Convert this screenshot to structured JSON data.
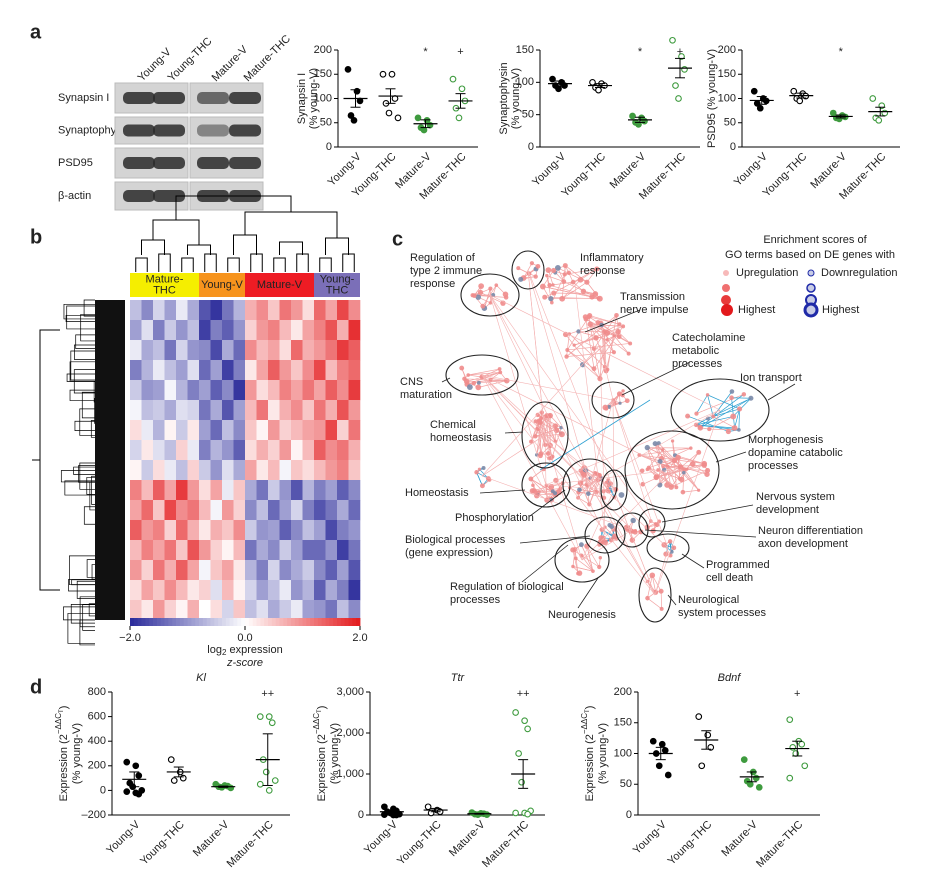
{
  "panels": [
    "a",
    "b",
    "c",
    "d"
  ],
  "blot": {
    "lanes": [
      "Young-V",
      "Young-THC",
      "Mature-V",
      "Mature-THC"
    ],
    "proteins": [
      "Synapsin I",
      "Synaptophysin",
      "PSD95",
      "β-actin"
    ]
  },
  "chart_data": [
    {
      "type": "dot",
      "ylabel": [
        "Synapsin I",
        "(% young-V)"
      ],
      "categories": [
        "Young-V",
        "Young-THC",
        "Mature-V",
        "Mature-THC"
      ],
      "colors": [
        "#000000",
        "#000000",
        "#3f9b3f",
        "#3f9b3f"
      ],
      "filled": [
        true,
        false,
        true,
        false
      ],
      "points": [
        [
          160,
          115,
          95,
          65,
          55
        ],
        [
          150,
          150,
          100,
          90,
          70,
          60
        ],
        [
          60,
          55,
          45,
          40,
          35
        ],
        [
          140,
          120,
          95,
          80,
          60
        ]
      ],
      "means": [
        100,
        105,
        48,
        95
      ],
      "errors": [
        18,
        15,
        8,
        15
      ],
      "annotations": [
        null,
        null,
        "*",
        "+"
      ],
      "ylim": [
        0,
        200
      ],
      "yticks": [
        0,
        50,
        100,
        150,
        200
      ]
    },
    {
      "type": "dot",
      "ylabel": [
        "Synaptophysin",
        "(% young-V)"
      ],
      "categories": [
        "Young-V",
        "Young-THC",
        "Mature-V",
        "Mature-THC"
      ],
      "colors": [
        "#000000",
        "#000000",
        "#3f9b3f",
        "#3f9b3f"
      ],
      "filled": [
        true,
        false,
        true,
        false
      ],
      "points": [
        [
          105,
          100,
          95,
          95,
          90
        ],
        [
          100,
          98,
          95,
          92,
          88
        ],
        [
          48,
          45,
          40,
          38,
          35
        ],
        [
          165,
          140,
          120,
          95,
          75
        ]
      ],
      "means": [
        98,
        95,
        42,
        122
      ],
      "errors": [
        4,
        3,
        4,
        15
      ],
      "annotations": [
        null,
        null,
        "*",
        "+"
      ],
      "ylim": [
        0,
        150
      ],
      "yticks": [
        0,
        50,
        100,
        150
      ]
    },
    {
      "type": "dot",
      "ylabel": [
        "PSD95 (% young-V)"
      ],
      "categories": [
        "Young-V",
        "Young-THC",
        "Mature-V",
        "Mature-THC"
      ],
      "colors": [
        "#000000",
        "#000000",
        "#3f9b3f",
        "#3f9b3f"
      ],
      "filled": [
        true,
        false,
        true,
        false
      ],
      "points": [
        [
          115,
          100,
          95,
          90,
          80
        ],
        [
          115,
          110,
          105,
          100,
          95
        ],
        [
          70,
          65,
          62,
          60,
          58
        ],
        [
          100,
          85,
          70,
          60,
          55
        ]
      ],
      "means": [
        96,
        106,
        63,
        73
      ],
      "errors": [
        8,
        5,
        3,
        9
      ],
      "annotations": [
        null,
        null,
        "*",
        null
      ],
      "ylim": [
        0,
        200
      ],
      "yticks": [
        0,
        50,
        100,
        150,
        200
      ]
    },
    {
      "type": "dot",
      "title": "Kl",
      "ylabel_expr": {
        "text": "Expression (2",
        "sup": "−ΔΔC",
        "sub": "T",
        "close": ")"
      },
      "ylabel": [
        "(% young-V)"
      ],
      "categories": [
        "Young-V",
        "Young-THC",
        "Mature-V",
        "Mature-THC"
      ],
      "colors": [
        "#000000",
        "#000000",
        "#3f9b3f",
        "#3f9b3f"
      ],
      "filled": [
        true,
        false,
        true,
        false
      ],
      "points": [
        [
          230,
          200,
          120,
          60,
          30,
          0,
          -10,
          -20,
          -30
        ],
        [
          250,
          150,
          100,
          80
        ],
        [
          50,
          40,
          35,
          30,
          25,
          20
        ],
        [
          600,
          600,
          550,
          250,
          150,
          80,
          50,
          0
        ]
      ],
      "means": [
        90,
        150,
        30,
        250
      ],
      "errors": [
        60,
        40,
        5,
        210
      ],
      "annotations": [
        null,
        null,
        null,
        "++"
      ],
      "ylim": [
        -200,
        800
      ],
      "yticks": [
        {
          "value": -200,
          "label": "–200"
        },
        0,
        200,
        400,
        600,
        800
      ]
    },
    {
      "type": "dot",
      "title": "Ttr",
      "ylabel_expr": {
        "text": "Expression (2",
        "sup": "−ΔΔC",
        "sub": "T",
        "close": ")"
      },
      "ylabel": [
        "(% young-V)"
      ],
      "categories": [
        "Young-V",
        "Young-THC",
        "Mature-V",
        "Mature-THC"
      ],
      "colors": [
        "#000000",
        "#000000",
        "#3f9b3f",
        "#3f9b3f"
      ],
      "filled": [
        true,
        false,
        true,
        false
      ],
      "points": [
        [
          200,
          150,
          100,
          80,
          50,
          20,
          10,
          0,
          0
        ],
        [
          200,
          120,
          80,
          50
        ],
        [
          60,
          40,
          30,
          20,
          10,
          10
        ],
        [
          2500,
          2300,
          2100,
          1500,
          800,
          100,
          50,
          50,
          20
        ]
      ],
      "means": [
        80,
        120,
        30,
        1000
      ],
      "errors": [
        40,
        40,
        10,
        350
      ],
      "annotations": [
        null,
        null,
        null,
        "++"
      ],
      "ylim": [
        0,
        3000
      ],
      "yticks": [
        0,
        {
          "value": 1000,
          "label": "1,000"
        },
        {
          "value": 2000,
          "label": "2,000"
        },
        {
          "value": 3000,
          "label": "3,000"
        }
      ]
    },
    {
      "type": "dot",
      "title": "Bdnf",
      "ylabel_expr": {
        "text": "Expression (2",
        "sup": "−ΔΔC",
        "sub": "T",
        "close": ")"
      },
      "ylabel": [
        "(% young-V)"
      ],
      "categories": [
        "Young-V",
        "Young-THC",
        "Mature-V",
        "Mature-THC"
      ],
      "colors": [
        "#000000",
        "#000000",
        "#3f9b3f",
        "#3f9b3f"
      ],
      "filled": [
        true,
        false,
        true,
        false
      ],
      "points": [
        [
          120,
          115,
          105,
          100,
          80,
          65
        ],
        [
          160,
          130,
          110,
          80
        ],
        [
          90,
          70,
          60,
          55,
          50,
          45
        ],
        [
          155,
          120,
          115,
          110,
          100,
          80,
          60
        ]
      ],
      "means": [
        100,
        122,
        62,
        108
      ],
      "errors": [
        10,
        15,
        8,
        12
      ],
      "annotations": [
        null,
        null,
        null,
        "+"
      ],
      "ylim": [
        0,
        200
      ],
      "yticks": [
        0,
        50,
        100,
        150,
        200
      ]
    }
  ],
  "heatmap": {
    "groups": [
      {
        "name": [
          "Mature-",
          "THC"
        ],
        "color": "#f5ee00"
      },
      {
        "name": [
          "Young-V"
        ],
        "color": "#f7941d"
      },
      {
        "name": [
          "Mature-V"
        ],
        "color": "#ee1c24"
      },
      {
        "name": [
          "Young-",
          "THC"
        ],
        "color": "#7b6fb8"
      }
    ],
    "zlim": [
      -2,
      2
    ],
    "low_color": "#2a2a9a",
    "mid_color": "#ffffff",
    "high_color": "#e3191c",
    "colorbar_ticks": [
      {
        "value": -2,
        "label": "−2.0"
      },
      {
        "value": 0,
        "label": "0.0"
      },
      {
        "value": 2,
        "label": "2.0"
      }
    ],
    "colorbar_label": {
      "text": "log",
      "sub": "2",
      "rest": " expression"
    },
    "colorbar_label2": "z-score",
    "z": [
      [
        [
          -0.6,
          -1.1,
          -0.4,
          -0.9,
          -0.2,
          -0.8
        ],
        [
          -1.6,
          -1.9,
          -1.3,
          -0.7
        ],
        [
          0.7,
          1.0,
          0.5,
          1.2,
          0.9,
          0.3
        ],
        [
          1.3,
          0.8,
          1.6,
          1.0
        ]
      ],
      [
        [
          -0.9,
          -0.3,
          -1.2,
          -0.5,
          -1.0,
          -0.6
        ],
        [
          -1.8,
          -1.2,
          -1.5,
          -1.0
        ],
        [
          0.4,
          0.9,
          1.1,
          0.6,
          0.2,
          0.8
        ],
        [
          1.1,
          1.5,
          0.7,
          1.8
        ]
      ],
      [
        [
          -0.2,
          -0.8,
          -0.6,
          -1.3,
          -0.4,
          -1.0
        ],
        [
          -1.1,
          -1.7,
          -0.8,
          -1.4
        ],
        [
          1.0,
          0.6,
          0.8,
          0.3,
          1.3,
          0.7
        ],
        [
          0.9,
          1.2,
          1.7,
          1.4
        ]
      ],
      [
        [
          -1.2,
          -0.7,
          -0.2,
          -0.6,
          -0.9,
          -0.3
        ],
        [
          -1.4,
          -0.9,
          -1.8,
          -1.2
        ],
        [
          0.2,
          0.8,
          1.4,
          0.9,
          0.5,
          1.0
        ],
        [
          1.6,
          0.6,
          1.1,
          1.3
        ]
      ],
      [
        [
          -0.5,
          -1.0,
          -0.9,
          -0.1,
          -0.7,
          -1.2
        ],
        [
          -0.9,
          -1.5,
          -1.1,
          -1.9
        ],
        [
          0.9,
          0.3,
          0.6,
          1.1,
          0.8,
          1.2
        ],
        [
          0.8,
          1.4,
          1.0,
          1.7
        ]
      ],
      [
        [
          -0.1,
          -0.6,
          -0.5,
          -0.8,
          -0.3,
          -0.4
        ],
        [
          -1.3,
          -0.8,
          -1.6,
          -0.9
        ],
        [
          0.6,
          1.2,
          0.2,
          0.7,
          1.0,
          0.5
        ],
        [
          1.2,
          0.7,
          1.5,
          0.9
        ]
      ],
      [
        [
          0.3,
          -0.2,
          -0.7,
          0.1,
          -0.5,
          0.2
        ],
        [
          -0.9,
          -1.4,
          -0.6,
          -1.1
        ],
        [
          0.5,
          0.1,
          0.9,
          0.4,
          0.6,
          0.8
        ],
        [
          0.9,
          1.6,
          0.4,
          1.2
        ]
      ],
      [
        [
          -0.4,
          0.2,
          -0.3,
          -0.6,
          0.4,
          -0.2
        ],
        [
          -1.2,
          -0.7,
          -1.0,
          -1.5
        ],
        [
          0.3,
          0.7,
          0.4,
          0.9,
          0.1,
          0.6
        ],
        [
          1.4,
          1.0,
          1.2,
          0.7
        ]
      ],
      [
        [
          0.1,
          -0.5,
          0.3,
          -0.2,
          -0.6,
          0.4
        ],
        [
          -0.5,
          -1.0,
          -0.3,
          -0.8
        ],
        [
          0.8,
          0.2,
          0.6,
          -0.1,
          0.5,
          0.3
        ],
        [
          0.6,
          0.9,
          1.1,
          0.5
        ]
      ],
      [
        [
          1.1,
          0.6,
          1.4,
          0.8,
          1.7,
          0.9
        ],
        [
          0.3,
          0.8,
          -0.2,
          0.5
        ],
        [
          -0.8,
          -1.3,
          -0.5,
          -1.0,
          -1.6,
          -0.7
        ],
        [
          -1.2,
          -0.9,
          -1.5,
          -1.1
        ]
      ],
      [
        [
          0.8,
          1.3,
          0.5,
          1.6,
          1.0,
          1.2
        ],
        [
          0.6,
          -0.1,
          0.9,
          0.4
        ],
        [
          -1.1,
          -0.6,
          -1.4,
          -0.9,
          -0.4,
          -1.2
        ],
        [
          -1.6,
          -1.3,
          -0.8,
          -1.4
        ]
      ],
      [
        [
          1.4,
          0.9,
          1.1,
          0.4,
          1.3,
          0.7
        ],
        [
          0.2,
          0.7,
          0.5,
          1.0
        ],
        [
          -0.5,
          -1.0,
          -0.9,
          -1.5,
          -1.1,
          -0.6
        ],
        [
          -0.9,
          -1.7,
          -1.2,
          -1.0
        ]
      ],
      [
        [
          0.6,
          1.1,
          0.8,
          1.2,
          0.5,
          1.5
        ],
        [
          0.9,
          0.4,
          0.1,
          0.6
        ],
        [
          -1.3,
          -0.8,
          -1.1,
          -0.5,
          -0.9,
          -1.4
        ],
        [
          -1.4,
          -1.0,
          -1.8,
          -1.3
        ]
      ],
      [
        [
          0.9,
          0.4,
          1.2,
          0.7,
          1.4,
          0.8
        ],
        [
          -0.1,
          0.5,
          0.8,
          0.2
        ],
        [
          -0.7,
          -1.2,
          -0.4,
          -1.1,
          -0.8,
          -0.5
        ],
        [
          -1.1,
          -1.5,
          -0.9,
          -1.6
        ]
      ],
      [
        [
          0.3,
          0.8,
          0.5,
          1.0,
          0.6,
          0.2
        ],
        [
          0.4,
          -0.3,
          0.6,
          0.1
        ],
        [
          -0.4,
          -0.9,
          -0.6,
          -0.2,
          -1.0,
          -0.7
        ],
        [
          -1.5,
          -0.8,
          -1.2,
          -1.9
        ]
      ],
      [
        [
          0.5,
          0.2,
          0.9,
          0.4,
          0.1,
          0.7
        ],
        [
          0.0,
          0.3,
          -0.4,
          0.5
        ],
        [
          -0.6,
          -0.3,
          -0.8,
          -0.5,
          -0.2,
          -0.9
        ],
        [
          -1.0,
          -1.3,
          -0.6,
          -1.1
        ]
      ]
    ]
  },
  "network": {
    "legend": {
      "title": [
        "Enrichment scores of",
        "GO terms based on DE genes with"
      ],
      "up": "Upregulation",
      "down": "Downregulation",
      "highest_up": "Highest",
      "highest_down": "Highest"
    },
    "labels": [
      [
        "Regulation of",
        "type 2 immune",
        "response"
      ],
      [
        "Inflammatory",
        "response"
      ],
      [
        "Transmission",
        "nerve impulse"
      ],
      [
        "Catecholamine",
        "metabolic",
        "processes"
      ],
      [
        "CNS",
        "maturation"
      ],
      [
        "Ion transport"
      ],
      [
        "Chemical",
        "homeostasis"
      ],
      [
        "Morphogenesis",
        "dopamine catabolic",
        "processes"
      ],
      [
        "Homeostasis"
      ],
      [
        "Phosphorylation"
      ],
      [
        "Nervous system",
        "development"
      ],
      [
        "Biological processes",
        "(gene expression)"
      ],
      [
        "Neuron differentiation",
        "axon development"
      ],
      [
        "Programmed",
        "cell death"
      ],
      [
        "Regulation of biological",
        "processes"
      ],
      [
        "Neurogenesis"
      ],
      [
        "Neurological",
        "system processes"
      ]
    ]
  }
}
